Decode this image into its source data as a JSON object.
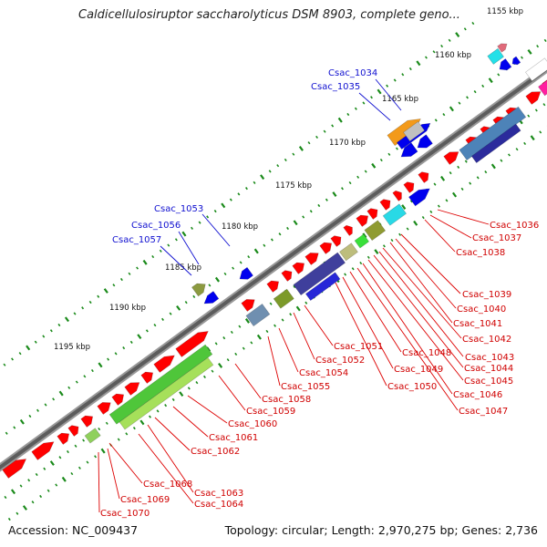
{
  "title": "Caldicellulosiruptor saccharolyticus DSM 8903, complete geno...",
  "footer": {
    "accession": "Accession: NC_009437",
    "topology": "Topology: circular; Length: 2,970,275 bp; Genes: 2,736"
  },
  "ticks": [
    "1155 kbp",
    "1160 kbp",
    "1165 kbp",
    "1170 kbp",
    "1175 kbp",
    "1180 kbp",
    "1185 kbp",
    "1190 kbp",
    "1195 kbp"
  ],
  "gene_labels_blue": [
    "Csac_1034",
    "Csac_1035",
    "Csac_1053",
    "Csac_1056",
    "Csac_1057"
  ],
  "gene_labels_red": [
    "Csac_1036",
    "Csac_1037",
    "Csac_1038",
    "Csac_1039",
    "Csac_1040",
    "Csac_1041",
    "Csac_1042",
    "Csac_1043",
    "Csac_1044",
    "Csac_1045",
    "Csac_1046",
    "Csac_1047",
    "Csac_1048",
    "Csac_1049",
    "Csac_1050",
    "Csac_1051",
    "Csac_1052",
    "Csac_1054",
    "Csac_1055",
    "Csac_1058",
    "Csac_1059",
    "Csac_1060",
    "Csac_1061",
    "Csac_1062",
    "Csac_1063",
    "Csac_1064",
    "Csac_1068",
    "Csac_1069",
    "Csac_1070"
  ],
  "colors": {
    "forward_gene": "#ff0000",
    "reverse_gene": "#0000ee",
    "backbone": "#777777",
    "tick": "#1a8a1a",
    "label_red": "#dd0000",
    "label_blue": "#1010d0"
  }
}
